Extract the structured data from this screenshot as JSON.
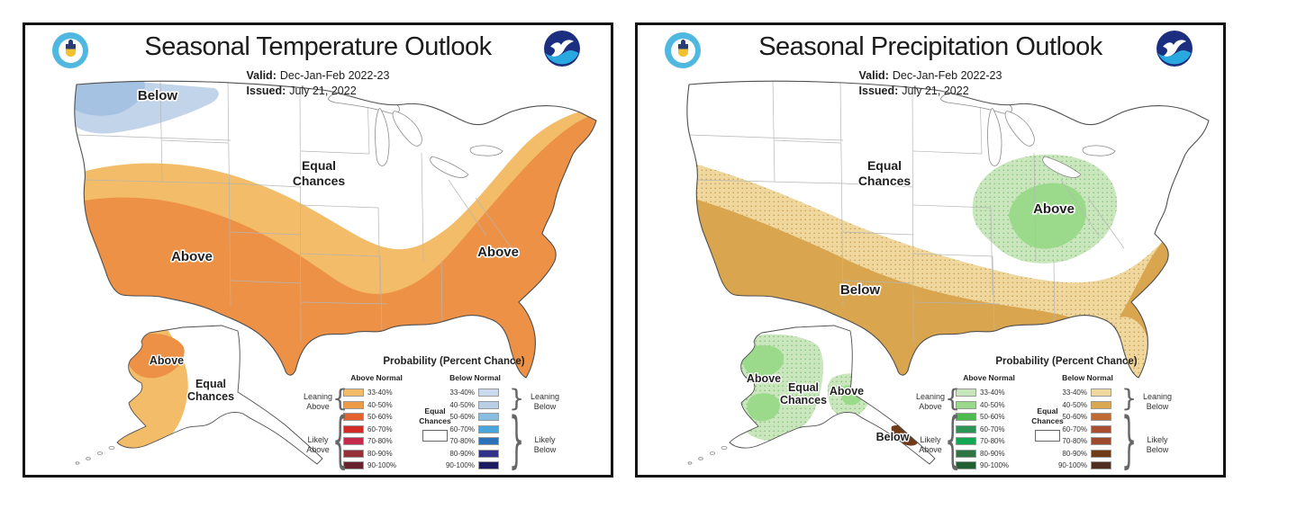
{
  "panels": [
    {
      "title": "Seasonal Temperature Outlook",
      "valid_label": "Valid:",
      "valid_value": "Dec-Jan-Feb 2022-23",
      "issued_label": "Issued:",
      "issued_value": "July 21, 2022",
      "map_labels": {
        "nw_below": "Below",
        "equal_line1": "Equal",
        "equal_line2": "Chances",
        "sw_above": "Above",
        "east_above": "Above",
        "ak_above": "Above",
        "ak_equal_line1": "Equal",
        "ak_equal_line2": "Chances"
      },
      "map_colors": {
        "band1_above": "#F3BC68",
        "band2_above": "#EC9145",
        "band1_below": "#C2D4EA",
        "band2_below": "#A6C2E2"
      },
      "legend": {
        "title": "Probability (Percent Chance)",
        "above_header": "Above Normal",
        "below_header": "Below Normal",
        "equal_line1": "Equal",
        "equal_line2": "Chances",
        "leaning_above": "Leaning Above",
        "likely_above": "Likely Above",
        "leaning_below": "Leaning Below",
        "likely_below": "Likely Below",
        "ranges": [
          "33-40%",
          "40-50%",
          "50-60%",
          "60-70%",
          "70-80%",
          "80-90%",
          "90-100%"
        ],
        "above_colors": [
          "#F3BC68",
          "#EE9B48",
          "#E4622F",
          "#D32B27",
          "#C62B4D",
          "#933038",
          "#67222C"
        ],
        "below_colors": [
          "#CBD9EC",
          "#B9CFE8",
          "#88BEE1",
          "#48A6DD",
          "#2C72BA",
          "#32328A",
          "#1D1B5F"
        ]
      }
    },
    {
      "title": "Seasonal Precipitation Outlook",
      "valid_label": "Valid:",
      "valid_value": "Dec-Jan-Feb 2022-23",
      "issued_label": "Issued:",
      "issued_value": "July 21, 2022",
      "map_labels": {
        "south_below": "Below",
        "equal_line1": "Equal",
        "equal_line2": "Chances",
        "oh_above": "Above",
        "ak_above_west": "Above",
        "ak_equal_line1": "Equal",
        "ak_equal_line2": "Chances",
        "ak_above_central": "Above",
        "ak_below": "Below"
      },
      "map_colors": {
        "band1_above": "#C9E6BD",
        "band2_above": "#9BDA8B",
        "band1_below": "#EFD79D",
        "band2_below": "#D9A54E",
        "ak_below_patch": "#6F3B18"
      },
      "legend": {
        "title": "Probability (Percent Chance)",
        "above_header": "Above Normal",
        "below_header": "Below Normal",
        "equal_line1": "Equal",
        "equal_line2": "Chances",
        "leaning_above": "Leaning Above",
        "likely_above": "Likely Above",
        "leaning_below": "Leaning Below",
        "likely_below": "Likely Below",
        "ranges": [
          "33-40%",
          "40-50%",
          "50-60%",
          "60-70%",
          "70-80%",
          "80-90%",
          "90-100%"
        ],
        "above_colors": [
          "#C7E5BB",
          "#99D989",
          "#4CBC4E",
          "#2E9455",
          "#12A854",
          "#2C7442",
          "#1F5F31"
        ],
        "below_colors": [
          "#EFD79D",
          "#DAA850",
          "#C06B34",
          "#A94E31",
          "#9D4A2E",
          "#6F3B18",
          "#4F2D21"
        ]
      }
    }
  ]
}
